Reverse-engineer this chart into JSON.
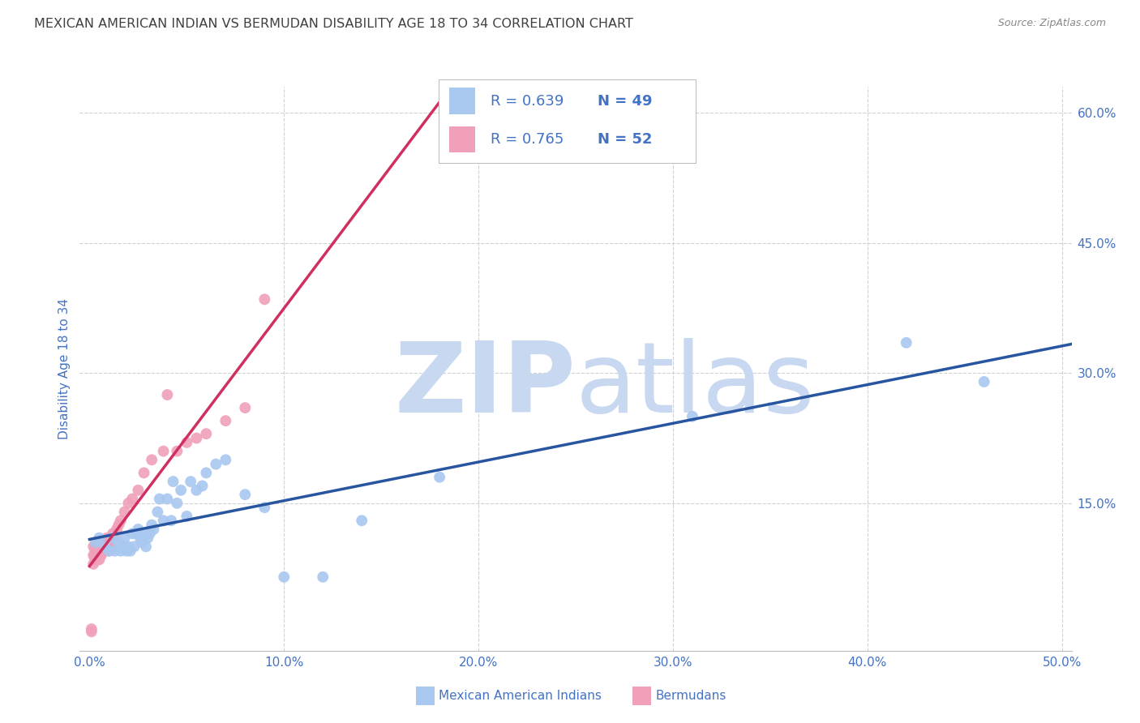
{
  "title": "MEXICAN AMERICAN INDIAN VS BERMUDAN DISABILITY AGE 18 TO 34 CORRELATION CHART",
  "source": "Source: ZipAtlas.com",
  "ylabel": "Disability Age 18 to 34",
  "xlabel_ticks": [
    "0.0%",
    "10.0%",
    "20.0%",
    "30.0%",
    "40.0%",
    "50.0%"
  ],
  "xlabel_vals": [
    0.0,
    0.1,
    0.2,
    0.3,
    0.4,
    0.5
  ],
  "ylabel_ticks": [
    "15.0%",
    "30.0%",
    "45.0%",
    "60.0%"
  ],
  "ylabel_vals": [
    0.15,
    0.3,
    0.45,
    0.6
  ],
  "xlim": [
    -0.005,
    0.505
  ],
  "ylim": [
    -0.02,
    0.63
  ],
  "legend_label1": "Mexican American Indians",
  "legend_label2": "Bermudans",
  "R1": 0.639,
  "N1": 49,
  "R2": 0.765,
  "N2": 52,
  "color_blue": "#a8c8f0",
  "color_pink": "#f0a0b8",
  "line_blue": "#2855a0",
  "line_pink": "#d03060",
  "line_dash_blue": "#c0c8e0",
  "watermark_zip": "ZIP",
  "watermark_atlas": "atlas",
  "watermark_color": "#c8d8f0",
  "background_color": "#ffffff",
  "grid_color": "#d0d0d0",
  "title_color": "#404040",
  "axis_label_color": "#4472c4",
  "tick_label_color": "#4472c4",
  "blue_scatter_x": [
    0.003,
    0.005,
    0.008,
    0.01,
    0.012,
    0.013,
    0.015,
    0.016,
    0.017,
    0.018,
    0.019,
    0.02,
    0.021,
    0.022,
    0.023,
    0.024,
    0.025,
    0.026,
    0.027,
    0.028,
    0.029,
    0.03,
    0.031,
    0.032,
    0.033,
    0.035,
    0.036,
    0.038,
    0.04,
    0.042,
    0.043,
    0.045,
    0.047,
    0.05,
    0.052,
    0.055,
    0.058,
    0.06,
    0.065,
    0.07,
    0.08,
    0.09,
    0.1,
    0.12,
    0.14,
    0.18,
    0.31,
    0.42,
    0.46
  ],
  "blue_scatter_y": [
    0.105,
    0.11,
    0.1,
    0.095,
    0.11,
    0.095,
    0.105,
    0.095,
    0.1,
    0.11,
    0.095,
    0.1,
    0.095,
    0.115,
    0.1,
    0.115,
    0.12,
    0.11,
    0.105,
    0.115,
    0.1,
    0.11,
    0.115,
    0.125,
    0.12,
    0.14,
    0.155,
    0.13,
    0.155,
    0.13,
    0.175,
    0.15,
    0.165,
    0.135,
    0.175,
    0.165,
    0.17,
    0.185,
    0.195,
    0.2,
    0.16,
    0.145,
    0.065,
    0.065,
    0.13,
    0.18,
    0.25,
    0.335,
    0.29
  ],
  "pink_scatter_x": [
    0.001,
    0.001,
    0.002,
    0.002,
    0.002,
    0.003,
    0.003,
    0.003,
    0.003,
    0.004,
    0.004,
    0.004,
    0.004,
    0.005,
    0.005,
    0.005,
    0.005,
    0.005,
    0.006,
    0.006,
    0.006,
    0.006,
    0.007,
    0.007,
    0.007,
    0.008,
    0.008,
    0.009,
    0.009,
    0.01,
    0.01,
    0.011,
    0.012,
    0.013,
    0.014,
    0.015,
    0.016,
    0.018,
    0.02,
    0.022,
    0.025,
    0.028,
    0.032,
    0.038,
    0.04,
    0.045,
    0.05,
    0.055,
    0.06,
    0.07,
    0.08,
    0.09
  ],
  "pink_scatter_y": [
    0.002,
    0.005,
    0.08,
    0.09,
    0.1,
    0.085,
    0.09,
    0.095,
    0.1,
    0.085,
    0.09,
    0.095,
    0.1,
    0.09,
    0.095,
    0.1,
    0.105,
    0.085,
    0.09,
    0.095,
    0.1,
    0.105,
    0.095,
    0.1,
    0.105,
    0.095,
    0.105,
    0.1,
    0.11,
    0.095,
    0.105,
    0.1,
    0.115,
    0.11,
    0.12,
    0.125,
    0.13,
    0.14,
    0.15,
    0.155,
    0.165,
    0.185,
    0.2,
    0.21,
    0.275,
    0.21,
    0.22,
    0.225,
    0.23,
    0.245,
    0.26,
    0.385
  ]
}
